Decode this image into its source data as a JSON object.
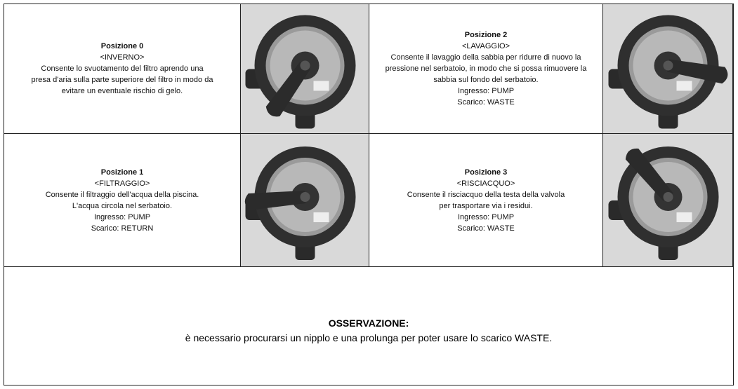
{
  "cells": [
    {
      "title": "Posizione 0",
      "mode": "<INVERNO>",
      "lines": [
        "Consente lo svuotamento del filtro aprendo una",
        "presa d'aria sulla parte superiore del filtro in modo da",
        "evitare un eventuale rischio di gelo."
      ]
    },
    {
      "title": "Posizione 2",
      "mode": "<LAVAGGIO>",
      "lines": [
        "Consente il lavaggio della sabbia per ridurre di nuovo la",
        "pressione nel serbatoio, in modo che si possa rimuovere la",
        "sabbia sul fondo del serbatoio.",
        "Ingresso: PUMP",
        "Scarico: WASTE"
      ]
    },
    {
      "title": "Posizione 1",
      "mode": "<FILTRAGGIO>",
      "lines": [
        "Consente il filtraggio dell'acqua della piscina.",
        "L'acqua circola nel serbatoio.",
        "Ingresso: PUMP",
        "Scarico: RETURN"
      ]
    },
    {
      "title": "Posizione 3",
      "mode": "<RISCIACQUO>",
      "lines": [
        "Consente il risciacquo della testa della valvola",
        "per trasportare via i residui.",
        "Ingresso: PUMP",
        "Scarico: WASTE"
      ]
    }
  ],
  "note": {
    "title": "OSSERVAZIONE:",
    "text": "è necessario procurarsi un nipplo e una prolunga per poter usare lo scarico WASTE."
  }
}
